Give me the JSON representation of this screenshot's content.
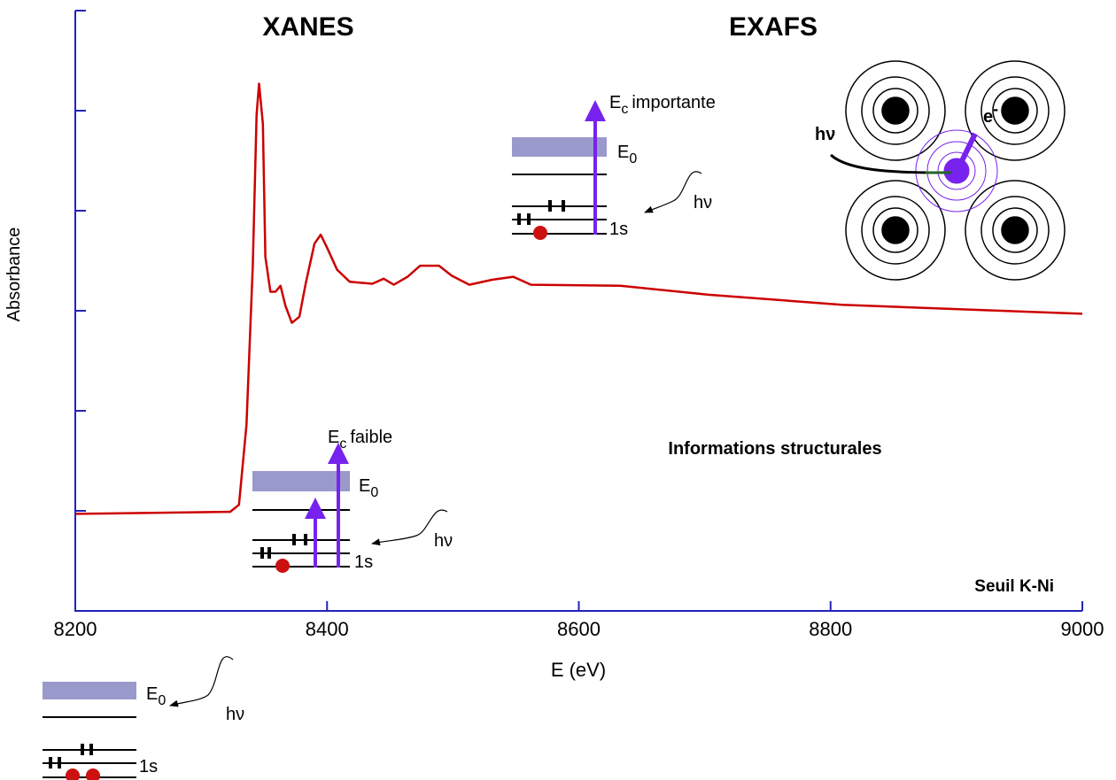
{
  "chart_data": {
    "type": "line",
    "x_label": "E (eV)",
    "y_label": "Absorbance",
    "x": [
      8200,
      8323,
      8330,
      8336,
      8341,
      8344,
      8346,
      8349,
      8351,
      8355,
      8359,
      8363,
      8367,
      8372,
      8378,
      8383,
      8390,
      8395,
      8400,
      8408,
      8418,
      8436,
      8445,
      8453,
      8464,
      8474,
      8489,
      8499,
      8513,
      8531,
      8548,
      8562,
      8633,
      8703,
      8809,
      8914,
      9000
    ],
    "values": [
      0.97,
      0.99,
      1.06,
      1.86,
      3.45,
      4.96,
      5.27,
      4.87,
      3.54,
      3.19,
      3.19,
      3.25,
      3.05,
      2.88,
      2.94,
      3.27,
      3.67,
      3.76,
      3.63,
      3.41,
      3.29,
      3.27,
      3.32,
      3.26,
      3.34,
      3.45,
      3.45,
      3.35,
      3.26,
      3.31,
      3.34,
      3.26,
      3.25,
      3.16,
      3.06,
      3.01,
      2.97
    ],
    "color": "#cc0000",
    "xlim": [
      8200,
      9000
    ],
    "xticks": [
      8200,
      8400,
      8600,
      8800,
      9000
    ],
    "ylim": [
      0,
      6
    ],
    "yticks": [
      1,
      2,
      3,
      4,
      5,
      6
    ],
    "grid": false,
    "annotations": {
      "xanes": "XANES",
      "exafs": "EXAFS",
      "info": "Informations structurales",
      "edge": "Seuil K-Ni",
      "e0": {
        "main": "E",
        "sub": "0"
      },
      "ec_weak": {
        "main": "E",
        "sub": "c",
        "rest": "faible"
      },
      "ec_strong": {
        "main": "E",
        "sub": "c",
        "rest": "importante"
      },
      "level_1s": "1s",
      "photon": "hν",
      "electron": {
        "main": "e",
        "sup": "-"
      }
    }
  }
}
